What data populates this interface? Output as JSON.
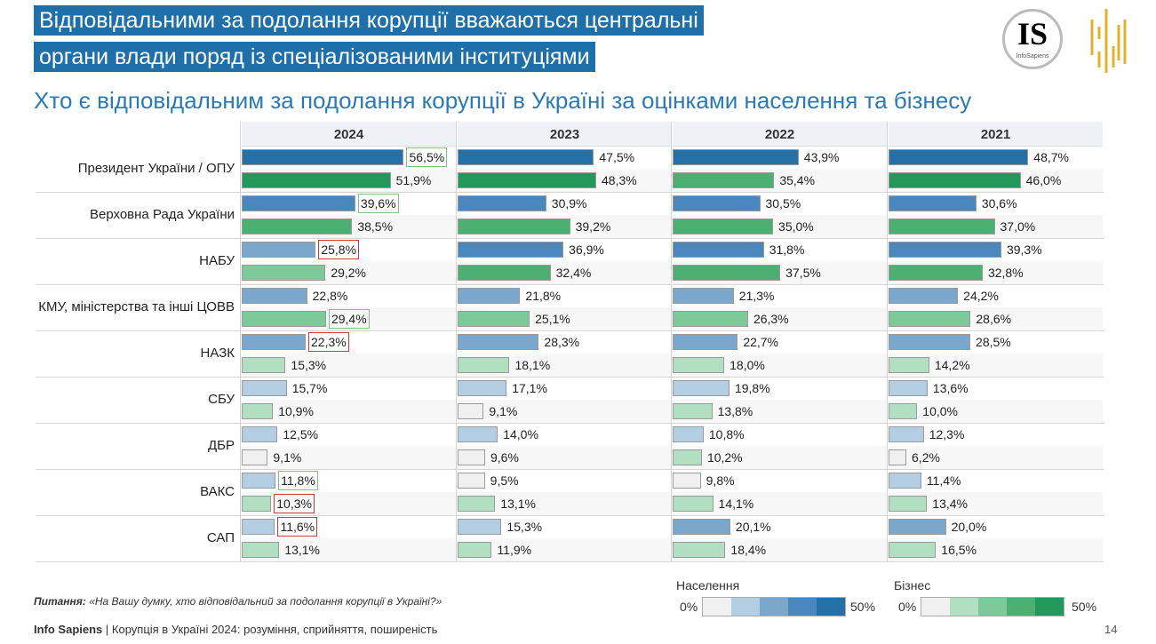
{
  "header": {
    "title_line1": "Відповідальними за подолання корупції вважаються центральні",
    "title_line2": "органи влади поряд із спеціалізованими інституціями",
    "subtitle": "Хто є відповідальним за подолання корупції в Україні за оцінками населення та бізнесу",
    "logo_text": "IS",
    "logo_caption": "InfoSapiens"
  },
  "chart_data": {
    "type": "bar",
    "title": "Хто є відповідальним за подолання корупції в Україні за оцінками населення та бізнесу",
    "years": [
      "2024",
      "2023",
      "2022",
      "2021"
    ],
    "categories": [
      "Президент України / ОПУ",
      "Верховна Рада України",
      "НАБУ",
      "КМУ, міністерства та інші ЦОВВ",
      "НАЗК",
      "СБУ",
      "ДБР",
      "ВАКС",
      "САП"
    ],
    "series": [
      {
        "name": "Населення",
        "values": {
          "2024": [
            56.5,
            39.6,
            25.8,
            22.8,
            22.3,
            15.7,
            12.5,
            11.8,
            11.6
          ],
          "2023": [
            47.5,
            30.9,
            36.9,
            21.8,
            28.3,
            17.1,
            14.0,
            9.5,
            15.3
          ],
          "2022": [
            43.9,
            30.5,
            31.8,
            21.3,
            22.7,
            19.8,
            10.8,
            9.8,
            20.1
          ],
          "2021": [
            48.7,
            30.6,
            39.3,
            24.2,
            28.5,
            13.6,
            12.3,
            11.4,
            20.0
          ]
        }
      },
      {
        "name": "Бізнес",
        "values": {
          "2024": [
            51.9,
            38.5,
            29.2,
            29.4,
            15.3,
            10.9,
            9.1,
            10.3,
            13.1
          ],
          "2023": [
            48.3,
            39.2,
            32.4,
            25.1,
            18.1,
            9.1,
            9.6,
            13.1,
            11.9
          ],
          "2022": [
            35.4,
            35.0,
            37.5,
            26.3,
            18.0,
            13.8,
            10.2,
            14.1,
            18.4
          ],
          "2021": [
            46.0,
            37.0,
            32.8,
            28.6,
            14.2,
            10.0,
            6.2,
            13.4,
            16.5
          ]
        }
      }
    ],
    "highlights_2024": {
      "Населення": [
        "green",
        "green",
        "red",
        "",
        "red",
        "",
        "",
        "green",
        "red"
      ],
      "Бізнес": [
        "",
        "",
        "",
        "green",
        "",
        "",
        "",
        "red",
        ""
      ]
    },
    "legend": {
      "population_label": "Населення",
      "business_label": "Бізнес",
      "min": "0%",
      "max": "50%"
    },
    "colors": {
      "pop": [
        "#f0f0f0",
        "#b3cde3",
        "#7ba7cc",
        "#4a87bc",
        "#2670a8"
      ],
      "biz": [
        "#f0f0f0",
        "#b2dfc1",
        "#7ec99a",
        "#4daf72",
        "#23985a"
      ]
    },
    "xlim": [
      0,
      75
    ]
  },
  "footer": {
    "question_label": "Питання:",
    "question": " «На Вашу думку, хто відповідальний за подолання корупції в Україні?»",
    "source_brand": "Info Sapiens",
    "source_rest": " | Корупція в Україні 2024: розуміння, сприйняття, поширеність",
    "page": "14"
  }
}
